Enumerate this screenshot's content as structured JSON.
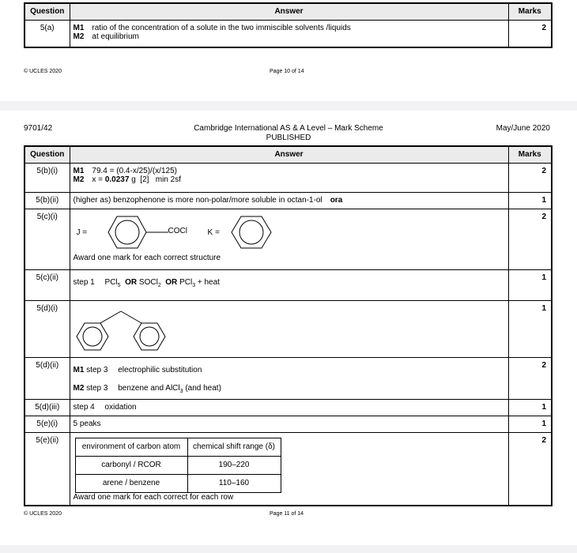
{
  "headers": {
    "question": "Question",
    "answer": "Answer",
    "marks": "Marks"
  },
  "page1": {
    "rows": [
      {
        "q": "5(a)",
        "m1_label": "M1",
        "m1": "ratio of the concentration of a solute in the two immiscible solvents /liquids",
        "m2_label": "M2",
        "m2": "at equilibrium",
        "marks": "2"
      }
    ],
    "footer_left": "© UCLES 2020",
    "footer_center": "Page 10 of 14"
  },
  "page2": {
    "code": "9701/42",
    "title": "Cambridge International AS & A Level – Mark Scheme",
    "subtitle": "PUBLISHED",
    "session": "May/June 2020",
    "rows": {
      "b_i": {
        "q": "5(b)(i)",
        "m1_label": "M1",
        "m1": "79.4 = (0.4-x/25)/(x/125)",
        "m2_label": "M2",
        "m2_pre": "x =",
        "m2_bold": "0.0237",
        "m2_post": "g  [2]   min 2sf",
        "marks": "2"
      },
      "b_ii": {
        "q": "5(b)(ii)",
        "text": "(higher as) benzophenone is more non-polar/more soluble in octan-1-ol",
        "ora": "ora",
        "marks": "1"
      },
      "c_i": {
        "q": "5(c)(i)",
        "j_label": "J =",
        "j_group": "COCl",
        "k_label": "K =",
        "note": "Award one mark for each correct structure",
        "marks": "2"
      },
      "c_ii": {
        "q": "5(c)(ii)",
        "step": "step 1",
        "r1": "PCl",
        "r1_sub": "5",
        "or1": "OR",
        "r2": "SOCl",
        "r2_sub": "2",
        "or2": "OR",
        "r3": "PCl",
        "r3_sub": "3",
        "r3_post": "+ heat",
        "marks": "1"
      },
      "d_i": {
        "q": "5(d)(i)",
        "marks": "1"
      },
      "d_ii": {
        "q": "5(d)(ii)",
        "m1_label": "M1",
        "m1_step": "step 3",
        "m1": "electrophilic substitution",
        "m2_label": "M2",
        "m2_step": "step 3",
        "m2": "benzene and AlCl",
        "m2_sub": "3",
        "m2_post": "(and heat)",
        "marks": "2"
      },
      "d_iii": {
        "q": "5(d)(iii)",
        "step": "step 4",
        "text": "oxidation",
        "marks": "1"
      },
      "e_i": {
        "q": "5(e)(i)",
        "text": "5 peaks",
        "marks": "1"
      },
      "e_ii": {
        "q": "5(e)(ii)",
        "col1": "environment of carbon atom",
        "col2": "chemical shift range (δ)",
        "table": [
          {
            "env": "carbonyl / RCOR",
            "range": "190–220"
          },
          {
            "env": "arene / benzene",
            "range": "110–160"
          }
        ],
        "note": "Award one mark for each correct for each row",
        "marks": "2"
      }
    },
    "footer_left": "© UCLES 2020",
    "footer_center": "Page 11 of 14"
  }
}
